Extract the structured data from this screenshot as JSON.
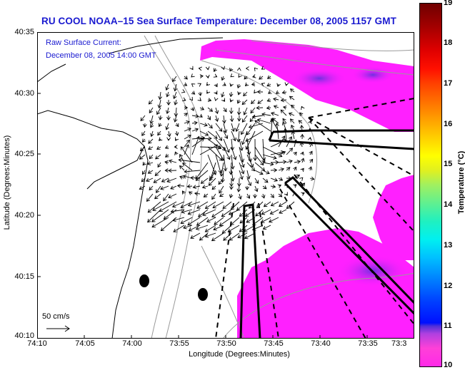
{
  "title": "RU COOL  NOAA–15  Sea Surface Temperature:  December 08, 2005 1157 GMT",
  "annotations": {
    "current_label": "Raw Surface Current:",
    "current_time": "December 08, 2005 14:00 GMT",
    "scale_label": "50 cm/s"
  },
  "chart_data": {
    "type": "heatmap",
    "title": "RU COOL  NOAA–15  Sea Surface Temperature:  December 08, 2005 1157 GMT",
    "xlabel": "Longitude (Degrees:Minutes)",
    "ylabel": "Latitude (Degrees:Minutes)",
    "x_ticks": [
      "74:10",
      "74:05",
      "74:00",
      "73:55",
      "73:50",
      "73:45",
      "73:40",
      "73:35",
      "73:3"
    ],
    "y_ticks": [
      "40:10",
      "40:15",
      "40:20",
      "40:25",
      "40:30",
      "40:35"
    ],
    "colorbar": {
      "label": "Temperature (°C)",
      "ticks": [
        "10",
        "11",
        "12",
        "13",
        "14",
        "15",
        "16",
        "17",
        "18",
        "19"
      ],
      "range": [
        10,
        19
      ]
    },
    "observed_sst_range_c": [
      10,
      11
    ],
    "colors": {
      "sst_warm": "#ff20ff",
      "sst_cool": "#8030e0",
      "land_line": "#000000",
      "bathymetry": "#909090",
      "title_color": "#1a1ad0"
    },
    "markers": [
      {
        "name": "station",
        "lon": "73:58.9",
        "lat": "40:14.4"
      },
      {
        "name": "station",
        "lon": "73:52.5",
        "lat": "40:13.4"
      }
    ]
  }
}
